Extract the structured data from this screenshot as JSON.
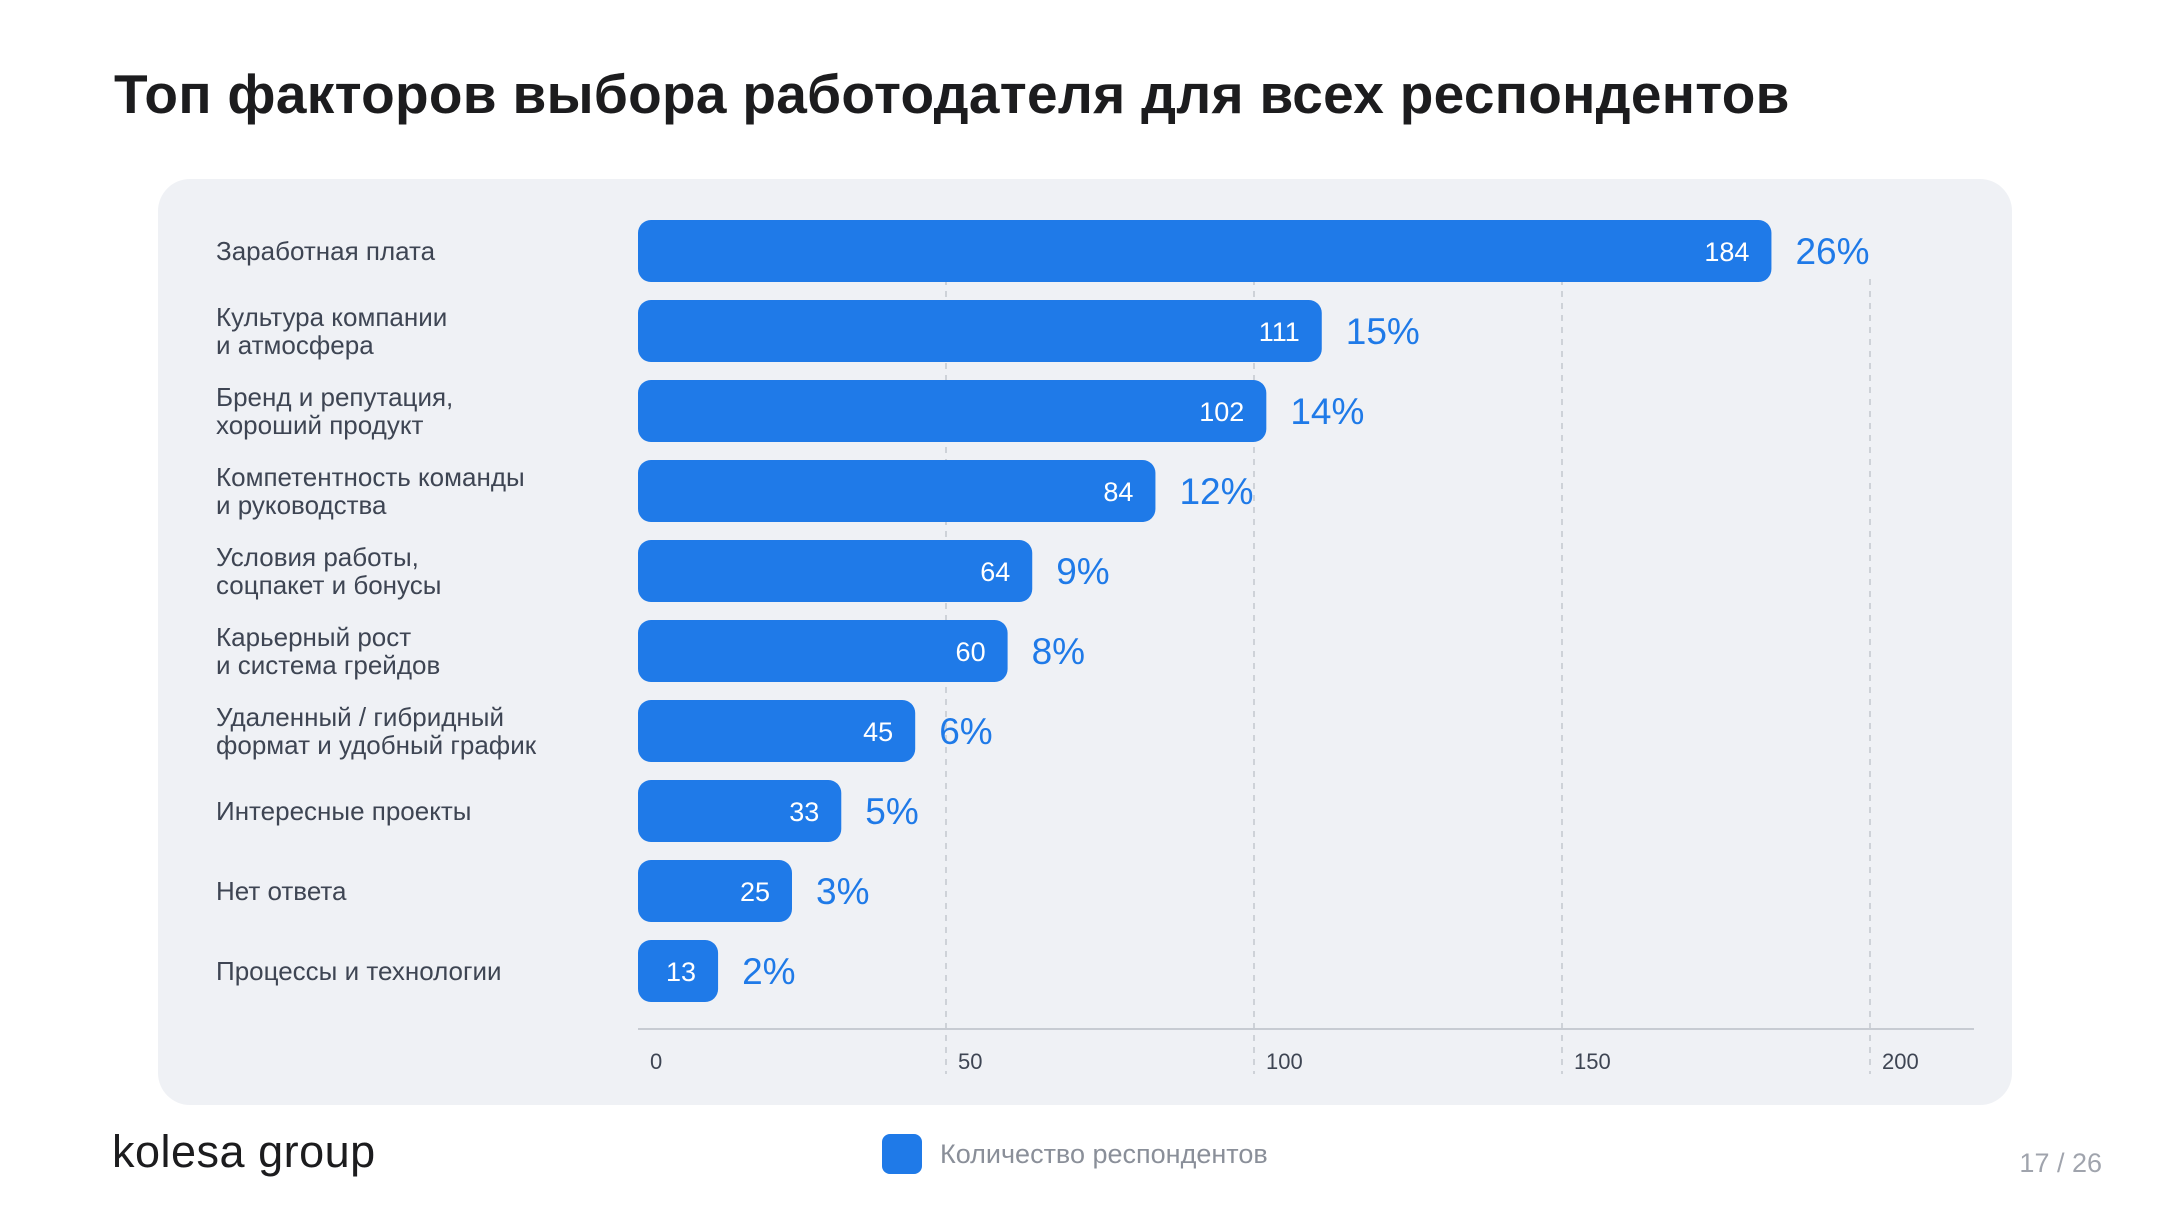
{
  "page": {
    "title": "Топ факторов выбора работодателя для всех респондентов",
    "logo": "kolesa group",
    "page_number": "17 / 26"
  },
  "legend": {
    "label": "Количество респондентов",
    "color": "#1f7ae8"
  },
  "chart_data": {
    "type": "bar",
    "orientation": "horizontal",
    "title": "",
    "xlabel": "",
    "ylabel": "",
    "xlim": [
      0,
      215
    ],
    "x_ticks": [
      0,
      50,
      100,
      150,
      200
    ],
    "grid": "vertical dashed",
    "bar_color": "#1f7ae8",
    "categories": [
      [
        "Заработная плата"
      ],
      [
        "Культура компании",
        "и атмосфера"
      ],
      [
        "Бренд и репутация,",
        "хороший продукт"
      ],
      [
        "Компетентность команды",
        "и руководства"
      ],
      [
        "Условия работы,",
        "соцпакет и бонусы"
      ],
      [
        "Карьерный рост",
        "и система грейдов"
      ],
      [
        "Удаленный / гибридный",
        "формат и удобный график"
      ],
      [
        "Интересные проекты"
      ],
      [
        "Нет ответа"
      ],
      [
        "Процессы и технологии"
      ]
    ],
    "series": [
      {
        "name": "Количество респондентов",
        "values": [
          184,
          111,
          102,
          84,
          64,
          60,
          45,
          33,
          25,
          13
        ],
        "percent_labels": [
          "26%",
          "15%",
          "14%",
          "12%",
          "9%",
          "8%",
          "6%",
          "5%",
          "3%",
          "2%"
        ]
      }
    ]
  }
}
